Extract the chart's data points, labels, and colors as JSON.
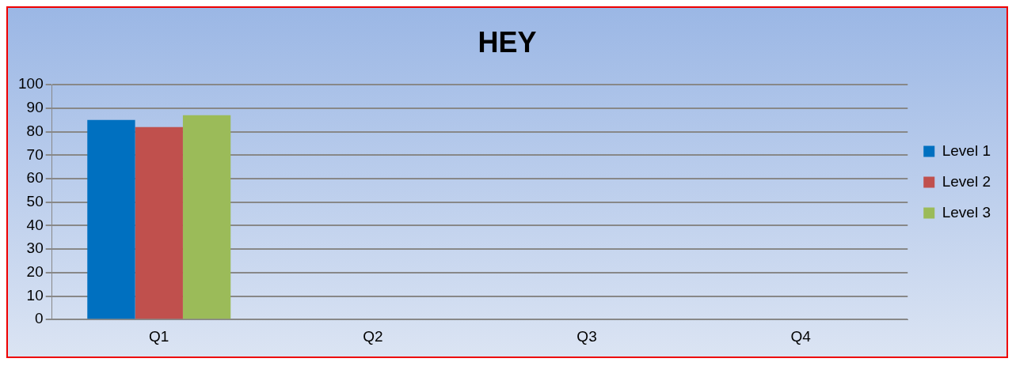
{
  "chart_data": {
    "type": "bar",
    "title": "HEY",
    "categories": [
      "Q1",
      "Q2",
      "Q3",
      "Q4"
    ],
    "series": [
      {
        "name": "Level 1",
        "color": "#0070c0",
        "values": [
          85,
          null,
          null,
          null
        ]
      },
      {
        "name": "Level 2",
        "color": "#c0504d",
        "values": [
          82,
          null,
          null,
          null
        ]
      },
      {
        "name": "Level 3",
        "color": "#9bbb59",
        "values": [
          87,
          null,
          null,
          null
        ]
      }
    ],
    "ylim": [
      0,
      100
    ],
    "yticks": [
      0,
      10,
      20,
      30,
      40,
      50,
      60,
      70,
      80,
      90,
      100
    ],
    "grid": "y",
    "legend": "right"
  }
}
